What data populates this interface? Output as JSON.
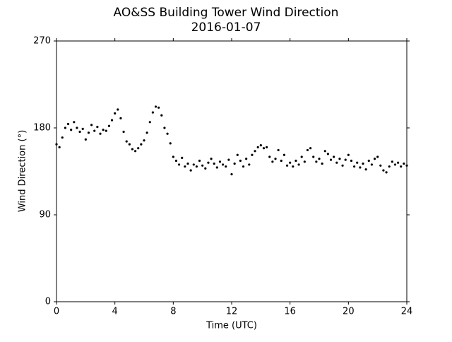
{
  "chart_data": {
    "type": "scatter",
    "title": "AO&SS Building Tower Wind Direction",
    "subtitle": "2016-01-07",
    "x_label": "Time (UTC)",
    "y_label": "Wind Direction (°)",
    "color": "#000000",
    "xlim": [
      0,
      24
    ],
    "xticks": [
      0,
      4,
      8,
      12,
      16,
      20,
      24
    ],
    "ylim": [
      0,
      270
    ],
    "yticks": [
      0,
      90,
      180,
      270
    ],
    "x": [
      0.0,
      0.2,
      0.4,
      0.6,
      0.8,
      1.0,
      1.2,
      1.4,
      1.6,
      1.8,
      2.0,
      2.2,
      2.4,
      2.6,
      2.8,
      3.0,
      3.2,
      3.4,
      3.6,
      3.8,
      4.0,
      4.2,
      4.4,
      4.6,
      4.8,
      5.0,
      5.2,
      5.4,
      5.6,
      5.8,
      6.0,
      6.2,
      6.4,
      6.6,
      6.8,
      7.0,
      7.2,
      7.4,
      7.6,
      7.8,
      8.0,
      8.2,
      8.4,
      8.6,
      8.8,
      9.0,
      9.2,
      9.4,
      9.6,
      9.8,
      10.0,
      10.2,
      10.4,
      10.6,
      10.8,
      11.0,
      11.2,
      11.4,
      11.6,
      11.8,
      12.0,
      12.2,
      12.4,
      12.6,
      12.8,
      13.0,
      13.2,
      13.4,
      13.6,
      13.8,
      14.0,
      14.2,
      14.4,
      14.6,
      14.8,
      15.0,
      15.2,
      15.4,
      15.6,
      15.8,
      16.0,
      16.2,
      16.4,
      16.6,
      16.8,
      17.0,
      17.2,
      17.4,
      17.6,
      17.8,
      18.0,
      18.2,
      18.4,
      18.6,
      18.8,
      19.0,
      19.2,
      19.4,
      19.6,
      19.8,
      20.0,
      20.2,
      20.4,
      20.6,
      20.8,
      21.0,
      21.2,
      21.4,
      21.6,
      21.8,
      22.0,
      22.2,
      22.4,
      22.6,
      22.8,
      23.0,
      23.2,
      23.4,
      23.6,
      23.8,
      24.0
    ],
    "values": [
      163,
      160,
      170,
      180,
      184,
      178,
      186,
      180,
      176,
      179,
      168,
      175,
      183,
      177,
      181,
      174,
      178,
      177,
      182,
      188,
      195,
      199,
      190,
      176,
      166,
      163,
      158,
      156,
      159,
      163,
      167,
      175,
      186,
      196,
      202,
      201,
      193,
      180,
      174,
      164,
      150,
      146,
      142,
      149,
      140,
      143,
      136,
      142,
      140,
      146,
      141,
      138,
      144,
      148,
      143,
      139,
      145,
      142,
      140,
      147,
      132,
      143,
      152,
      146,
      140,
      148,
      142,
      152,
      156,
      160,
      162,
      159,
      160,
      150,
      145,
      148,
      157,
      146,
      152,
      141,
      144,
      140,
      146,
      142,
      150,
      145,
      157,
      159,
      150,
      145,
      148,
      143,
      156,
      153,
      147,
      150,
      144,
      148,
      141,
      147,
      152,
      146,
      140,
      144,
      139,
      143,
      137,
      146,
      142,
      148,
      150,
      141,
      136,
      134,
      140,
      145,
      142,
      144,
      140,
      143,
      141
    ]
  }
}
